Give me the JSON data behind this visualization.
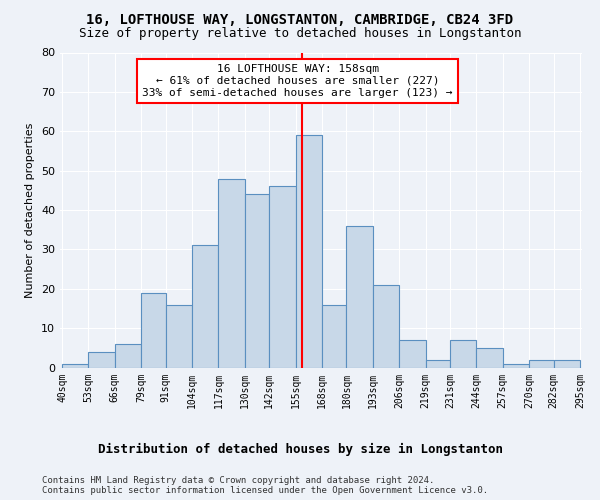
{
  "title": "16, LOFTHOUSE WAY, LONGSTANTON, CAMBRIDGE, CB24 3FD",
  "subtitle": "Size of property relative to detached houses in Longstanton",
  "xlabel": "Distribution of detached houses by size in Longstanton",
  "ylabel": "Number of detached properties",
  "bar_edges": [
    40,
    53,
    66,
    79,
    91,
    104,
    117,
    130,
    142,
    155,
    168,
    180,
    193,
    206,
    219,
    231,
    244,
    257,
    270,
    282,
    295
  ],
  "bar_heights": [
    1,
    4,
    6,
    19,
    16,
    31,
    48,
    44,
    46,
    59,
    16,
    36,
    21,
    7,
    2,
    7,
    5,
    1,
    2,
    2
  ],
  "bar_color": "#c8d8e8",
  "bar_edgecolor": "#5a8fc0",
  "vline_x": 158,
  "vline_color": "red",
  "annotation_text": "16 LOFTHOUSE WAY: 158sqm\n← 61% of detached houses are smaller (227)\n33% of semi-detached houses are larger (123) →",
  "annotation_box_facecolor": "white",
  "annotation_box_edgecolor": "red",
  "ylim": [
    0,
    80
  ],
  "yticks": [
    0,
    10,
    20,
    30,
    40,
    50,
    60,
    70,
    80
  ],
  "tick_labels": [
    "40sqm",
    "53sqm",
    "66sqm",
    "79sqm",
    "91sqm",
    "104sqm",
    "117sqm",
    "130sqm",
    "142sqm",
    "155sqm",
    "168sqm",
    "180sqm",
    "193sqm",
    "206sqm",
    "219sqm",
    "231sqm",
    "244sqm",
    "257sqm",
    "270sqm",
    "282sqm",
    "295sqm"
  ],
  "footer": "Contains HM Land Registry data © Crown copyright and database right 2024.\nContains public sector information licensed under the Open Government Licence v3.0.",
  "background_color": "#eef2f8",
  "grid_color": "#ffffff",
  "title_fontsize": 10,
  "subtitle_fontsize": 9,
  "xlabel_fontsize": 9,
  "ylabel_fontsize": 8,
  "tick_fontsize": 7,
  "footer_fontsize": 6.5,
  "annot_fontsize": 8
}
